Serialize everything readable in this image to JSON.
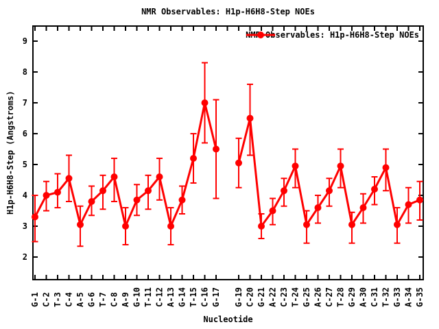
{
  "colors": {
    "series": "#ff0000",
    "text": "#000000",
    "border": "#000000",
    "background": "#ffffff"
  },
  "chart_data": {
    "type": "line",
    "title": "NMR Observables: H1p-H6H8-Step NOEs",
    "series_name": "NMR Observables: H1p-H6H8-Step NOEs",
    "xlabel": "Nucleotide",
    "ylabel": "H1p-H6H8-Step (Angstroms)",
    "y_ticks": [
      2,
      3,
      4,
      5,
      6,
      7,
      8,
      9
    ],
    "ylim": [
      1.3,
      9.5
    ],
    "grid": false,
    "legend_position": "top-right-inside",
    "marker": "filled-circle",
    "error_bars": true,
    "line_break_at_position": 18,
    "points": [
      {
        "pos": 1,
        "label": "G-1",
        "value": 3.3,
        "err_low": 2.5,
        "err_high": 4.0
      },
      {
        "pos": 2,
        "label": "C-2",
        "value": 4.0,
        "err_low": 3.5,
        "err_high": 4.45
      },
      {
        "pos": 3,
        "label": "T-3",
        "value": 4.1,
        "err_low": 3.6,
        "err_high": 4.7
      },
      {
        "pos": 4,
        "label": "C-4",
        "value": 4.55,
        "err_low": 3.8,
        "err_high": 5.3
      },
      {
        "pos": 5,
        "label": "A-5",
        "value": 3.05,
        "err_low": 2.35,
        "err_high": 3.65
      },
      {
        "pos": 6,
        "label": "G-6",
        "value": 3.8,
        "err_low": 3.35,
        "err_high": 4.3
      },
      {
        "pos": 7,
        "label": "T-7",
        "value": 4.15,
        "err_low": 3.55,
        "err_high": 4.65
      },
      {
        "pos": 8,
        "label": "C-8",
        "value": 4.6,
        "err_low": 3.8,
        "err_high": 5.2
      },
      {
        "pos": 9,
        "label": "A-9",
        "value": 3.0,
        "err_low": 2.4,
        "err_high": 3.6
      },
      {
        "pos": 10,
        "label": "G-10",
        "value": 3.85,
        "err_low": 3.35,
        "err_high": 4.35
      },
      {
        "pos": 11,
        "label": "T-11",
        "value": 4.15,
        "err_low": 3.55,
        "err_high": 4.65
      },
      {
        "pos": 12,
        "label": "C-12",
        "value": 4.6,
        "err_low": 3.85,
        "err_high": 5.2
      },
      {
        "pos": 13,
        "label": "A-13",
        "value": 3.0,
        "err_low": 2.4,
        "err_high": 3.6
      },
      {
        "pos": 14,
        "label": "G-14",
        "value": 3.85,
        "err_low": 3.4,
        "err_high": 4.3
      },
      {
        "pos": 15,
        "label": "T-15",
        "value": 5.2,
        "err_low": 4.4,
        "err_high": 6.0
      },
      {
        "pos": 16,
        "label": "C-16",
        "value": 7.0,
        "err_low": 5.7,
        "err_high": 8.3
      },
      {
        "pos": 17,
        "label": "G-17",
        "value": 5.5,
        "err_low": 3.9,
        "err_high": 7.1
      },
      {
        "pos": 19,
        "label": "G-19",
        "value": 5.05,
        "err_low": 4.25,
        "err_high": 5.85
      },
      {
        "pos": 20,
        "label": "C-20",
        "value": 6.5,
        "err_low": 5.3,
        "err_high": 7.6
      },
      {
        "pos": 21,
        "label": "G-21",
        "value": 3.0,
        "err_low": 2.6,
        "err_high": 3.4
      },
      {
        "pos": 22,
        "label": "A-22",
        "value": 3.5,
        "err_low": 3.05,
        "err_high": 3.9
      },
      {
        "pos": 23,
        "label": "C-23",
        "value": 4.15,
        "err_low": 3.65,
        "err_high": 4.55
      },
      {
        "pos": 24,
        "label": "T-24",
        "value": 4.95,
        "err_low": 4.25,
        "err_high": 5.5
      },
      {
        "pos": 25,
        "label": "G-25",
        "value": 3.05,
        "err_low": 2.45,
        "err_high": 3.5
      },
      {
        "pos": 26,
        "label": "A-26",
        "value": 3.6,
        "err_low": 3.1,
        "err_high": 4.0
      },
      {
        "pos": 27,
        "label": "C-27",
        "value": 4.15,
        "err_low": 3.65,
        "err_high": 4.55
      },
      {
        "pos": 28,
        "label": "T-28",
        "value": 4.95,
        "err_low": 4.25,
        "err_high": 5.5
      },
      {
        "pos": 29,
        "label": "G-29",
        "value": 3.05,
        "err_low": 2.45,
        "err_high": 3.45
      },
      {
        "pos": 30,
        "label": "A-30",
        "value": 3.6,
        "err_low": 3.1,
        "err_high": 4.05
      },
      {
        "pos": 31,
        "label": "C-31",
        "value": 4.2,
        "err_low": 3.7,
        "err_high": 4.6
      },
      {
        "pos": 32,
        "label": "T-32",
        "value": 4.9,
        "err_low": 4.15,
        "err_high": 5.5
      },
      {
        "pos": 33,
        "label": "G-33",
        "value": 3.05,
        "err_low": 2.45,
        "err_high": 3.6
      },
      {
        "pos": 34,
        "label": "A-34",
        "value": 3.7,
        "err_low": 3.1,
        "err_high": 4.25
      },
      {
        "pos": 35,
        "label": "G-35",
        "value": 3.85,
        "err_low": 3.2,
        "err_high": 4.45
      }
    ]
  }
}
